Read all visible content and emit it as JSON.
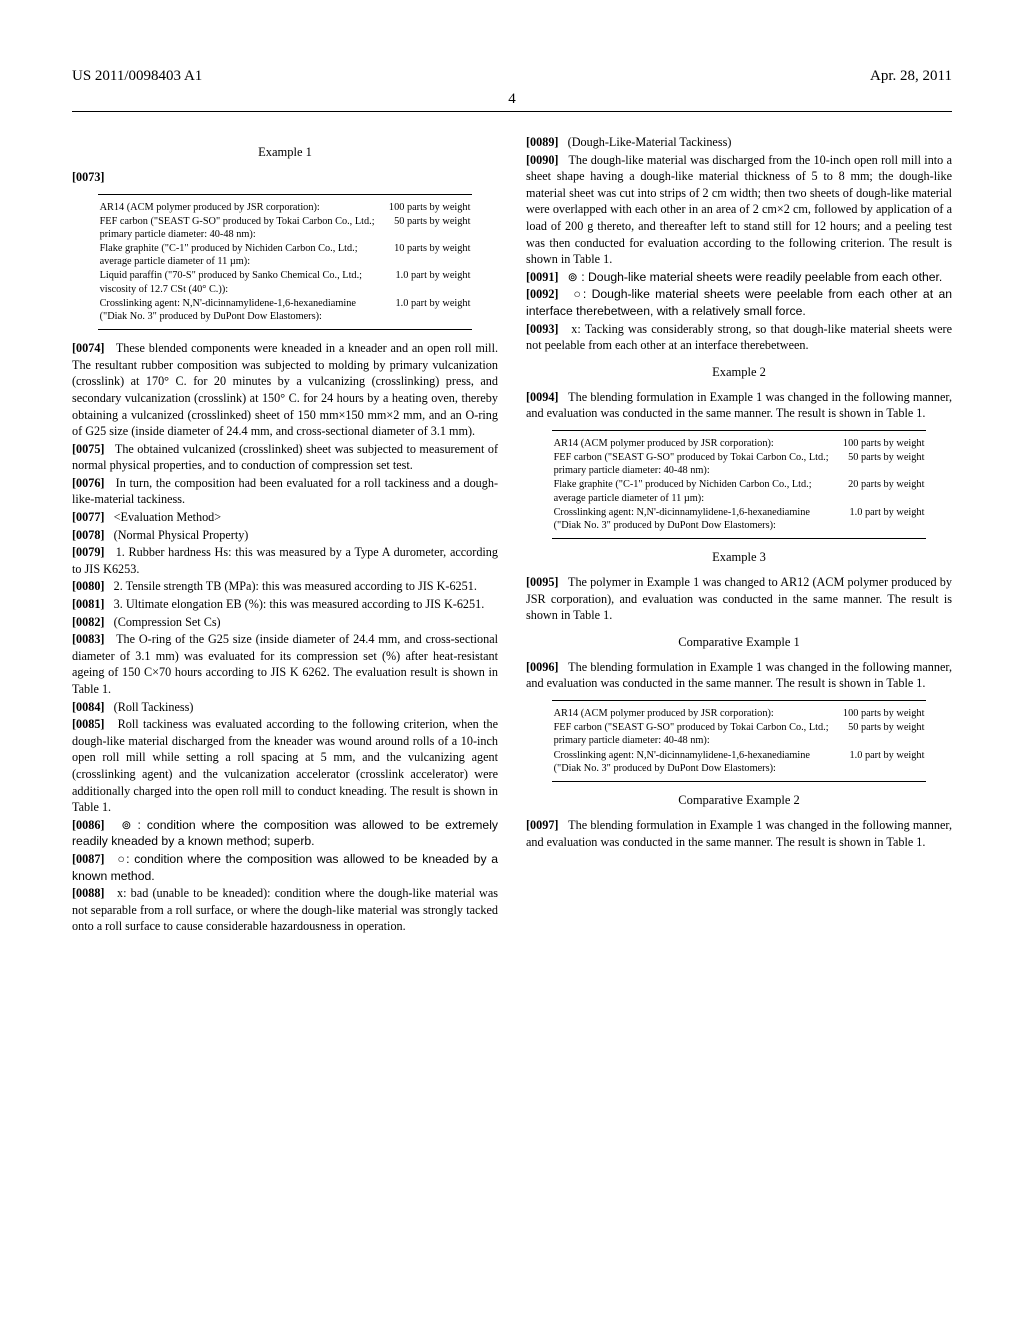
{
  "header": {
    "pub_number": "US 2011/0098403 A1",
    "pub_date": "Apr. 28, 2011"
  },
  "page_number": "4",
  "left": {
    "example1_title": "Example 1",
    "p0073": "[0073]",
    "table1": [
      {
        "desc": "AR14 (ACM polymer produced by JSR corporation):",
        "amt": "100 parts by weight"
      },
      {
        "desc": "FEF carbon (\"SEAST G-SO\" produced by Tokai Carbon Co., Ltd.; primary particle diameter: 40-48 nm):",
        "amt": "50 parts by weight"
      },
      {
        "desc": "Flake graphite (\"C-1\" produced by Nichiden Carbon Co., Ltd.; average particle diameter of 11 µm):",
        "amt": "10 parts by weight"
      },
      {
        "desc": "Liquid paraffin (\"70-S\" produced by Sanko Chemical Co., Ltd.; viscosity of 12.7 CSt (40° C.)):",
        "amt": "1.0 part by weight"
      },
      {
        "desc": "Crosslinking agent: N,N'-dicinnamylidene-1,6-hexanediamine (\"Diak No. 3\" produced by DuPont Dow Elastomers):",
        "amt": "1.0 part by weight"
      }
    ],
    "p0074": "[0074]",
    "p0074_text": "These blended components were kneaded in a kneader and an open roll mill. The resultant rubber composition was subjected to molding by primary vulcanization (crosslink) at 170° C. for 20 minutes by a vulcanizing (crosslinking) press, and secondary vulcanization (crosslink) at 150° C. for 24 hours by a heating oven, thereby obtaining a vulcanized (crosslinked) sheet of 150 mm×150 mm×2 mm, and an O-ring of G25 size (inside diameter of 24.4 mm, and cross-sectional diameter of 3.1 mm).",
    "p0075": "[0075]",
    "p0075_text": "The obtained vulcanized (crosslinked) sheet was subjected to measurement of normal physical properties, and to conduction of compression set test.",
    "p0076": "[0076]",
    "p0076_text": "In turn, the composition had been evaluated for a roll tackiness and a dough-like-material tackiness.",
    "p0077": "[0077]",
    "p0077_text": "<Evaluation Method>",
    "p0078": "[0078]",
    "p0078_text": "(Normal Physical Property)",
    "p0079": "[0079]",
    "p0079_text": "1. Rubber hardness Hs: this was measured by a Type A durometer, according to JIS K6253.",
    "p0080": "[0080]",
    "p0080_text": "2. Tensile strength TB (MPa): this was measured according to JIS K-6251.",
    "p0081": "[0081]",
    "p0081_text": "3. Ultimate elongation EB (%): this was measured according to JIS K-6251.",
    "p0082": "[0082]",
    "p0082_text": "(Compression Set Cs)",
    "p0083": "[0083]",
    "p0083_text": "The O-ring of the G25 size (inside diameter of 24.4 mm, and cross-sectional diameter of 3.1 mm) was evaluated for its compression set (%) after heat-resistant ageing of 150 C×70 hours according to JIS K 6262. The evaluation result is shown in Table 1.",
    "p0084": "[0084]",
    "p0084_text": "(Roll Tackiness)",
    "p0085": "[0085]",
    "p0085_text": "Roll tackiness was evaluated according to the following criterion, when the dough-like material discharged from the kneader was wound around rolls of a 10-inch open roll mill while setting a roll spacing at 5 mm, and the vulcanizing agent (crosslinking agent) and the vulcanization accelerator (crosslink accelerator) were additionally charged into the open roll mill to conduct kneading. The result is shown in Table 1.",
    "p0086": "[0086]",
    "p0086_text": "⊚ : condition where the composition was allowed to be extremely readily kneaded by a known method; superb.",
    "p0087": "[0087]",
    "p0087_text": "○: condition where the composition was allowed to be kneaded by a known method.",
    "p0088": "[0088]",
    "p0088_text": "x: bad (unable to be kneaded): condition where the dough-like material was not separable from a roll surface, or where the dough-like material was strongly tacked onto a roll surface to cause considerable hazardousness in operation."
  },
  "right": {
    "p0089": "[0089]",
    "p0089_text": "(Dough-Like-Material Tackiness)",
    "p0090": "[0090]",
    "p0090_text": "The dough-like material was discharged from the 10-inch open roll mill into a sheet shape having a dough-like material thickness of 5 to 8 mm; the dough-like material sheet was cut into strips of 2 cm width; then two sheets of dough-like material were overlapped with each other in an area of 2 cm×2 cm, followed by application of a load of 200 g thereto, and thereafter left to stand still for 12 hours; and a peeling test was then conducted for evaluation according to the following criterion. The result is shown in Table 1.",
    "p0091": "[0091]",
    "p0091_text": "⊚ : Dough-like material sheets were readily peelable from each other.",
    "p0092": "[0092]",
    "p0092_text": "○: Dough-like material sheets were peelable from each other at an interface therebetween, with a relatively small force.",
    "p0093": "[0093]",
    "p0093_text": "x: Tacking was considerably strong, so that dough-like material sheets were not peelable from each other at an interface therebetween.",
    "example2_title": "Example 2",
    "p0094": "[0094]",
    "p0094_text": "The blending formulation in Example 1 was changed in the following manner, and evaluation was conducted in the same manner. The result is shown in Table 1.",
    "table2": [
      {
        "desc": "AR14 (ACM polymer produced by JSR corporation):",
        "amt": "100 parts by weight"
      },
      {
        "desc": "FEF carbon (\"SEAST G-SO\" produced by Tokai Carbon Co., Ltd.; primary particle diameter: 40-48 nm):",
        "amt": "50 parts by weight"
      },
      {
        "desc": "Flake graphite (\"C-1\" produced by Nichiden Carbon Co., Ltd.; average particle diameter of 11 µm):",
        "amt": "20 parts by weight"
      },
      {
        "desc": "Crosslinking agent: N,N'-dicinnamylidene-1,6-hexanediamine (\"Diak No. 3\" produced by DuPont Dow Elastomers):",
        "amt": "1.0 part by weight"
      }
    ],
    "example3_title": "Example 3",
    "p0095": "[0095]",
    "p0095_text": "The polymer in Example 1 was changed to AR12 (ACM polymer produced by JSR corporation), and evaluation was conducted in the same manner. The result is shown in Table 1.",
    "comp1_title": "Comparative Example 1",
    "p0096": "[0096]",
    "p0096_text": "The blending formulation in Example 1 was changed in the following manner, and evaluation was conducted in the same manner. The result is shown in Table 1.",
    "table3": [
      {
        "desc": "AR14 (ACM polymer produced by JSR corporation):",
        "amt": "100 parts by weight"
      },
      {
        "desc": "FEF carbon (\"SEAST G-SO\" produced by Tokai Carbon Co., Ltd.; primary particle diameter: 40-48 nm):",
        "amt": "50 parts by weight"
      },
      {
        "desc": "Crosslinking agent: N,N'-dicinnamylidene-1,6-hexanediamine (\"Diak No. 3\" produced by DuPont Dow Elastomers):",
        "amt": "1.0 part by weight"
      }
    ],
    "comp2_title": "Comparative Example 2",
    "p0097": "[0097]",
    "p0097_text": "The blending formulation in Example 1 was changed in the following manner, and evaluation was conducted in the same manner. The result is shown in Table 1."
  }
}
